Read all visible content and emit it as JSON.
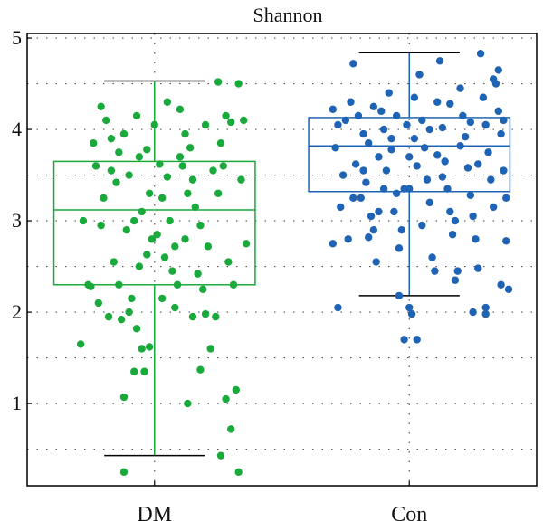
{
  "chart_data": {
    "type": "box",
    "title": "Shannon",
    "xlabel": "",
    "ylabel": "",
    "ylim": [
      0.1,
      5.05
    ],
    "yticks": [
      1,
      2,
      3,
      4,
      5
    ],
    "grid": true,
    "categories": [
      "DM",
      "Con"
    ],
    "groups": [
      {
        "category": "DM",
        "color": "#1aaa3c",
        "stats": {
          "whisker_low": 0.43,
          "q1": 2.3,
          "median": 3.12,
          "q3": 3.65,
          "whisker_high": 4.53
        },
        "points": [
          {
            "x": 0.71,
            "y": 1.65
          },
          {
            "x": 0.75,
            "y": 2.28
          },
          {
            "x": 0.78,
            "y": 2.1
          },
          {
            "x": 0.72,
            "y": 3.0
          },
          {
            "x": 0.8,
            "y": 3.25
          },
          {
            "x": 0.83,
            "y": 3.9
          },
          {
            "x": 0.76,
            "y": 3.85
          },
          {
            "x": 0.79,
            "y": 4.25
          },
          {
            "x": 0.81,
            "y": 4.1
          },
          {
            "x": 0.77,
            "y": 3.6
          },
          {
            "x": 0.84,
            "y": 2.55
          },
          {
            "x": 0.86,
            "y": 2.3
          },
          {
            "x": 0.82,
            "y": 1.95
          },
          {
            "x": 0.87,
            "y": 1.92
          },
          {
            "x": 0.9,
            "y": 2.0
          },
          {
            "x": 0.93,
            "y": 1.82
          },
          {
            "x": 0.95,
            "y": 1.6
          },
          {
            "x": 0.98,
            "y": 1.62
          },
          {
            "x": 0.92,
            "y": 1.35
          },
          {
            "x": 0.96,
            "y": 1.35
          },
          {
            "x": 0.88,
            "y": 1.07
          },
          {
            "x": 0.91,
            "y": 2.15
          },
          {
            "x": 0.94,
            "y": 2.5
          },
          {
            "x": 0.97,
            "y": 2.63
          },
          {
            "x": 0.99,
            "y": 2.8
          },
          {
            "x": 0.89,
            "y": 2.9
          },
          {
            "x": 0.92,
            "y": 3.0
          },
          {
            "x": 0.95,
            "y": 3.1
          },
          {
            "x": 0.98,
            "y": 3.3
          },
          {
            "x": 0.9,
            "y": 3.5
          },
          {
            "x": 0.94,
            "y": 3.7
          },
          {
            "x": 0.97,
            "y": 3.78
          },
          {
            "x": 0.85,
            "y": 3.42
          },
          {
            "x": 0.88,
            "y": 3.95
          },
          {
            "x": 0.93,
            "y": 4.15
          },
          {
            "x": 1.0,
            "y": 4.05
          },
          {
            "x": 1.02,
            "y": 3.62
          },
          {
            "x": 1.05,
            "y": 3.48
          },
          {
            "x": 1.03,
            "y": 3.25
          },
          {
            "x": 1.06,
            "y": 3.0
          },
          {
            "x": 1.01,
            "y": 2.85
          },
          {
            "x": 1.04,
            "y": 2.6
          },
          {
            "x": 1.07,
            "y": 2.45
          },
          {
            "x": 1.09,
            "y": 2.3
          },
          {
            "x": 1.03,
            "y": 2.15
          },
          {
            "x": 1.08,
            "y": 2.05
          },
          {
            "x": 1.05,
            "y": 4.3
          },
          {
            "x": 1.1,
            "y": 4.22
          },
          {
            "x": 1.12,
            "y": 3.95
          },
          {
            "x": 1.14,
            "y": 3.8
          },
          {
            "x": 1.11,
            "y": 3.6
          },
          {
            "x": 1.15,
            "y": 3.45
          },
          {
            "x": 1.13,
            "y": 3.3
          },
          {
            "x": 1.16,
            "y": 3.15
          },
          {
            "x": 1.18,
            "y": 2.95
          },
          {
            "x": 1.12,
            "y": 2.8
          },
          {
            "x": 1.17,
            "y": 2.42
          },
          {
            "x": 1.19,
            "y": 2.25
          },
          {
            "x": 1.15,
            "y": 1.95
          },
          {
            "x": 1.2,
            "y": 1.98
          },
          {
            "x": 1.13,
            "y": 1.0
          },
          {
            "x": 1.18,
            "y": 1.37
          },
          {
            "x": 1.22,
            "y": 1.6
          },
          {
            "x": 1.24,
            "y": 1.95
          },
          {
            "x": 1.21,
            "y": 2.72
          },
          {
            "x": 1.25,
            "y": 3.3
          },
          {
            "x": 1.23,
            "y": 3.55
          },
          {
            "x": 1.26,
            "y": 3.85
          },
          {
            "x": 1.2,
            "y": 4.05
          },
          {
            "x": 1.28,
            "y": 4.15
          },
          {
            "x": 1.3,
            "y": 4.08
          },
          {
            "x": 1.27,
            "y": 3.6
          },
          {
            "x": 1.29,
            "y": 2.55
          },
          {
            "x": 1.31,
            "y": 2.3
          },
          {
            "x": 1.28,
            "y": 1.05
          },
          {
            "x": 1.3,
            "y": 0.72
          },
          {
            "x": 1.26,
            "y": 0.43
          },
          {
            "x": 1.32,
            "y": 1.15
          },
          {
            "x": 1.33,
            "y": 0.25
          },
          {
            "x": 0.88,
            "y": 0.25
          },
          {
            "x": 1.25,
            "y": 4.52
          },
          {
            "x": 1.33,
            "y": 4.5
          },
          {
            "x": 1.35,
            "y": 4.1
          },
          {
            "x": 1.34,
            "y": 3.45
          },
          {
            "x": 1.36,
            "y": 2.75
          },
          {
            "x": 0.74,
            "y": 2.3
          },
          {
            "x": 0.79,
            "y": 2.95
          },
          {
            "x": 0.83,
            "y": 3.55
          },
          {
            "x": 0.86,
            "y": 3.75
          },
          {
            "x": 1.08,
            "y": 2.72
          },
          {
            "x": 1.1,
            "y": 3.7
          }
        ]
      },
      {
        "category": "Con",
        "color": "#1f63b5",
        "stats": {
          "whisker_low": 2.18,
          "q1": 3.32,
          "median": 3.82,
          "q3": 4.13,
          "whisker_high": 4.84
        },
        "points": [
          {
            "x": 1.7,
            "y": 4.22
          },
          {
            "x": 1.72,
            "y": 4.05
          },
          {
            "x": 1.71,
            "y": 3.8
          },
          {
            "x": 1.74,
            "y": 3.5
          },
          {
            "x": 1.73,
            "y": 3.15
          },
          {
            "x": 1.7,
            "y": 2.75
          },
          {
            "x": 1.76,
            "y": 2.8
          },
          {
            "x": 1.72,
            "y": 2.05
          },
          {
            "x": 1.78,
            "y": 4.72
          },
          {
            "x": 1.77,
            "y": 4.3
          },
          {
            "x": 1.8,
            "y": 4.15
          },
          {
            "x": 1.82,
            "y": 3.95
          },
          {
            "x": 1.79,
            "y": 3.62
          },
          {
            "x": 1.83,
            "y": 3.42
          },
          {
            "x": 1.81,
            "y": 3.25
          },
          {
            "x": 1.85,
            "y": 3.05
          },
          {
            "x": 1.84,
            "y": 2.82
          },
          {
            "x": 1.87,
            "y": 2.55
          },
          {
            "x": 1.86,
            "y": 2.9
          },
          {
            "x": 1.88,
            "y": 3.7
          },
          {
            "x": 1.9,
            "y": 4.0
          },
          {
            "x": 1.89,
            "y": 4.2
          },
          {
            "x": 1.92,
            "y": 4.4
          },
          {
            "x": 1.93,
            "y": 3.9
          },
          {
            "x": 1.91,
            "y": 3.55
          },
          {
            "x": 1.95,
            "y": 3.3
          },
          {
            "x": 1.94,
            "y": 3.1
          },
          {
            "x": 1.97,
            "y": 2.9
          },
          {
            "x": 1.96,
            "y": 2.7
          },
          {
            "x": 1.98,
            "y": 3.35
          },
          {
            "x": 2.0,
            "y": 3.7
          },
          {
            "x": 1.99,
            "y": 4.05
          },
          {
            "x": 2.02,
            "y": 4.35
          },
          {
            "x": 2.0,
            "y": 2.05
          },
          {
            "x": 2.01,
            "y": 1.98
          },
          {
            "x": 1.98,
            "y": 1.7
          },
          {
            "x": 2.03,
            "y": 1.7
          },
          {
            "x": 1.96,
            "y": 2.18
          },
          {
            "x": 2.04,
            "y": 4.6
          },
          {
            "x": 2.05,
            "y": 4.1
          },
          {
            "x": 2.06,
            "y": 3.8
          },
          {
            "x": 2.07,
            "y": 3.45
          },
          {
            "x": 2.08,
            "y": 3.2
          },
          {
            "x": 2.05,
            "y": 2.95
          },
          {
            "x": 2.09,
            "y": 2.6
          },
          {
            "x": 2.1,
            "y": 2.45
          },
          {
            "x": 2.12,
            "y": 4.75
          },
          {
            "x": 2.11,
            "y": 4.3
          },
          {
            "x": 2.13,
            "y": 4.02
          },
          {
            "x": 2.14,
            "y": 3.65
          },
          {
            "x": 2.15,
            "y": 3.35
          },
          {
            "x": 2.16,
            "y": 3.1
          },
          {
            "x": 2.17,
            "y": 2.85
          },
          {
            "x": 2.19,
            "y": 2.45
          },
          {
            "x": 2.18,
            "y": 2.35
          },
          {
            "x": 2.2,
            "y": 4.45
          },
          {
            "x": 2.21,
            "y": 4.15
          },
          {
            "x": 2.22,
            "y": 3.92
          },
          {
            "x": 2.23,
            "y": 3.58
          },
          {
            "x": 2.24,
            "y": 3.28
          },
          {
            "x": 2.25,
            "y": 3.05
          },
          {
            "x": 2.26,
            "y": 2.8
          },
          {
            "x": 2.27,
            "y": 2.48
          },
          {
            "x": 2.25,
            "y": 2.0
          },
          {
            "x": 2.28,
            "y": 4.83
          },
          {
            "x": 2.29,
            "y": 4.35
          },
          {
            "x": 2.3,
            "y": 4.05
          },
          {
            "x": 2.31,
            "y": 3.75
          },
          {
            "x": 2.32,
            "y": 3.45
          },
          {
            "x": 2.33,
            "y": 3.15
          },
          {
            "x": 2.3,
            "y": 1.98
          },
          {
            "x": 2.34,
            "y": 4.5
          },
          {
            "x": 2.35,
            "y": 4.2
          },
          {
            "x": 2.36,
            "y": 3.95
          },
          {
            "x": 2.37,
            "y": 3.55
          },
          {
            "x": 2.38,
            "y": 3.25
          },
          {
            "x": 2.36,
            "y": 2.3
          },
          {
            "x": 2.39,
            "y": 2.25
          },
          {
            "x": 2.35,
            "y": 4.65
          },
          {
            "x": 2.33,
            "y": 4.55
          },
          {
            "x": 2.37,
            "y": 4.1
          },
          {
            "x": 2.38,
            "y": 2.78
          },
          {
            "x": 2.3,
            "y": 2.05
          },
          {
            "x": 1.75,
            "y": 4.1
          },
          {
            "x": 1.84,
            "y": 3.85
          },
          {
            "x": 1.93,
            "y": 3.78
          },
          {
            "x": 2.02,
            "y": 3.9
          },
          {
            "x": 2.11,
            "y": 3.72
          },
          {
            "x": 2.2,
            "y": 3.82
          },
          {
            "x": 1.86,
            "y": 4.25
          },
          {
            "x": 1.95,
            "y": 4.15
          },
          {
            "x": 2.08,
            "y": 4.0
          },
          {
            "x": 2.16,
            "y": 4.28
          },
          {
            "x": 2.24,
            "y": 4.08
          },
          {
            "x": 1.82,
            "y": 3.55
          },
          {
            "x": 1.9,
            "y": 3.35
          },
          {
            "x": 2.03,
            "y": 3.6
          },
          {
            "x": 2.13,
            "y": 3.48
          },
          {
            "x": 2.27,
            "y": 3.62
          },
          {
            "x": 1.78,
            "y": 3.25
          },
          {
            "x": 1.88,
            "y": 3.1
          },
          {
            "x": 2.0,
            "y": 3.35
          },
          {
            "x": 2.18,
            "y": 3.0
          }
        ]
      }
    ]
  }
}
